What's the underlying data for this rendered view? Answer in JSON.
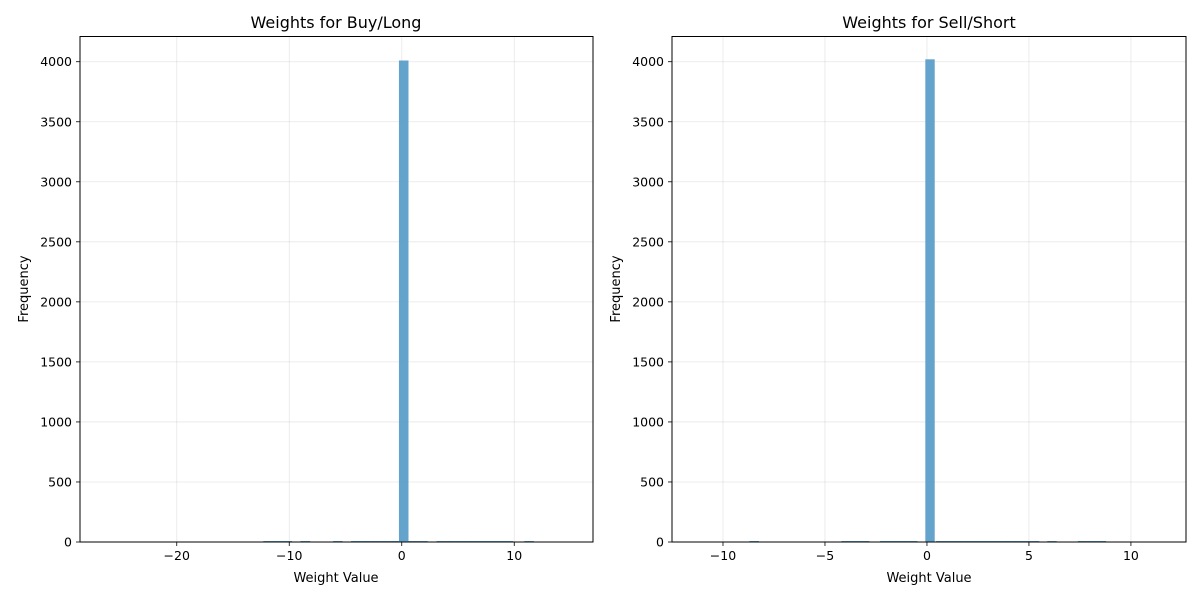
{
  "chart_data": [
    {
      "type": "bar",
      "title": "Weights for Buy/Long",
      "xlabel": "Weight Value",
      "ylabel": "Frequency",
      "xlim": [
        -28.6,
        17.0
      ],
      "ylim": [
        0,
        4210
      ],
      "xticks": [
        -20,
        -10,
        0,
        10
      ],
      "xtick_labels": [
        "−20",
        "−10",
        "0",
        "10"
      ],
      "yticks": [
        0,
        500,
        1000,
        1500,
        2000,
        2500,
        3000,
        3500,
        4000
      ],
      "ytick_labels": [
        "0",
        "500",
        "1000",
        "1500",
        "2000",
        "2500",
        "3000",
        "3500",
        "4000"
      ],
      "grid": true,
      "bar_color": "#5b9ec9",
      "bin_width": 0.85,
      "bins": [
        {
          "x": -12.3,
          "value": 3
        },
        {
          "x": -11.45,
          "value": 3
        },
        {
          "x": -10.6,
          "value": 2
        },
        {
          "x": -9.0,
          "value": 2
        },
        {
          "x": -6.1,
          "value": 2
        },
        {
          "x": -4.5,
          "value": 2
        },
        {
          "x": -3.65,
          "value": 3
        },
        {
          "x": -2.8,
          "value": 3
        },
        {
          "x": -1.95,
          "value": 4
        },
        {
          "x": -1.1,
          "value": 6
        },
        {
          "x": -0.25,
          "value": 4010
        },
        {
          "x": 0.6,
          "value": 6
        },
        {
          "x": 1.45,
          "value": 4
        },
        {
          "x": 3.1,
          "value": 2
        },
        {
          "x": 3.95,
          "value": 3
        },
        {
          "x": 4.8,
          "value": 3
        },
        {
          "x": 5.65,
          "value": 2
        },
        {
          "x": 6.5,
          "value": 2
        },
        {
          "x": 7.35,
          "value": 2
        },
        {
          "x": 8.2,
          "value": 2
        },
        {
          "x": 9.05,
          "value": 2
        },
        {
          "x": 10.9,
          "value": 2
        }
      ]
    },
    {
      "type": "bar",
      "title": "Weights for Sell/Short",
      "xlabel": "Weight Value",
      "ylabel": "Frequency",
      "xlim": [
        -12.5,
        12.7
      ],
      "ylim": [
        0,
        4210
      ],
      "xticks": [
        -10,
        -5,
        0,
        5,
        10
      ],
      "xtick_labels": [
        "−10",
        "−5",
        "0",
        "5",
        "10"
      ],
      "yticks": [
        0,
        500,
        1000,
        1500,
        2000,
        2500,
        3000,
        3500,
        4000
      ],
      "ytick_labels": [
        "0",
        "500",
        "1000",
        "1500",
        "2000",
        "2500",
        "3000",
        "3500",
        "4000"
      ],
      "grid": true,
      "bar_color": "#5b9ec9",
      "bin_width": 0.46,
      "bins": [
        {
          "x": -8.7,
          "value": 3
        },
        {
          "x": -4.2,
          "value": 2
        },
        {
          "x": -3.74,
          "value": 2
        },
        {
          "x": -3.28,
          "value": 2
        },
        {
          "x": -2.3,
          "value": 2
        },
        {
          "x": -1.84,
          "value": 2
        },
        {
          "x": -1.38,
          "value": 3
        },
        {
          "x": -0.92,
          "value": 3
        },
        {
          "x": -0.08,
          "value": 4020
        },
        {
          "x": 0.45,
          "value": 4
        },
        {
          "x": 0.91,
          "value": 3
        },
        {
          "x": 1.37,
          "value": 2
        },
        {
          "x": 1.83,
          "value": 2
        },
        {
          "x": 2.29,
          "value": 2
        },
        {
          "x": 2.75,
          "value": 2
        },
        {
          "x": 3.21,
          "value": 2
        },
        {
          "x": 3.67,
          "value": 2
        },
        {
          "x": 4.13,
          "value": 2
        },
        {
          "x": 4.59,
          "value": 2
        },
        {
          "x": 5.05,
          "value": 2
        },
        {
          "x": 5.9,
          "value": 2
        },
        {
          "x": 7.4,
          "value": 2
        },
        {
          "x": 7.86,
          "value": 2
        },
        {
          "x": 8.32,
          "value": 2
        }
      ]
    }
  ]
}
